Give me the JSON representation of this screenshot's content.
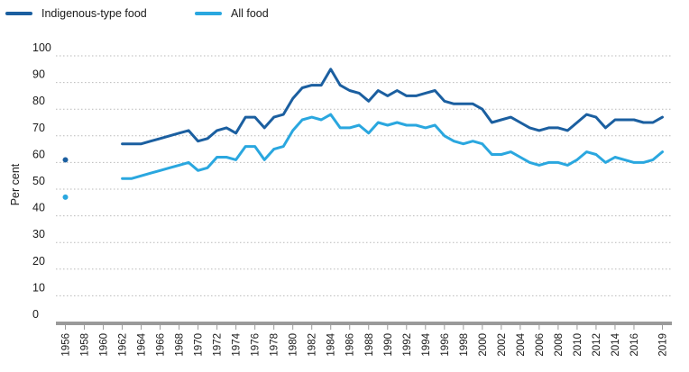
{
  "chart_data": {
    "type": "line",
    "title": "",
    "xlabel": "",
    "ylabel": "Per cent",
    "ylim": [
      0,
      100
    ],
    "xlim": [
      1955,
      2020
    ],
    "yticks": [
      "0",
      "10",
      "20",
      "30",
      "40",
      "50",
      "60",
      "70",
      "80",
      "90",
      "100"
    ],
    "xticks": [
      "1956",
      "1958",
      "1960",
      "1962",
      "1964",
      "1966",
      "1968",
      "1970",
      "1972",
      "1974",
      "1976",
      "1978",
      "1980",
      "1982",
      "1984",
      "1986",
      "1988",
      "1990",
      "1992",
      "1994",
      "1996",
      "1998",
      "2000",
      "2002",
      "2004",
      "2006",
      "2008",
      "2010",
      "2012",
      "2014",
      "2016",
      "2019"
    ],
    "grid": true,
    "legend_position": "top-left",
    "series": [
      {
        "name": "Indigenous-type food",
        "color": "#1b5fa0",
        "isolated_point": {
          "x": 1956,
          "y": 61
        },
        "x": [
          1962,
          1963,
          1964,
          1965,
          1966,
          1967,
          1968,
          1969,
          1970,
          1971,
          1972,
          1973,
          1974,
          1975,
          1976,
          1977,
          1978,
          1979,
          1980,
          1981,
          1982,
          1983,
          1984,
          1985,
          1986,
          1987,
          1988,
          1989,
          1990,
          1991,
          1992,
          1993,
          1994,
          1995,
          1996,
          1997,
          1998,
          1999,
          2000,
          2001,
          2002,
          2003,
          2004,
          2005,
          2006,
          2007,
          2008,
          2009,
          2010,
          2011,
          2012,
          2013,
          2014,
          2015,
          2016,
          2017,
          2018,
          2019
        ],
        "values": [
          67,
          67,
          67,
          68,
          69,
          70,
          71,
          72,
          68,
          69,
          72,
          73,
          71,
          77,
          77,
          73,
          77,
          78,
          84,
          88,
          89,
          89,
          95,
          89,
          87,
          86,
          83,
          87,
          85,
          87,
          85,
          85,
          86,
          87,
          83,
          82,
          82,
          82,
          80,
          75,
          76,
          77,
          75,
          73,
          72,
          73,
          73,
          72,
          75,
          78,
          77,
          73,
          76,
          76,
          76,
          75,
          75,
          77
        ]
      },
      {
        "name": "All food",
        "color": "#2aa7df",
        "isolated_point": {
          "x": 1956,
          "y": 47
        },
        "x": [
          1962,
          1963,
          1964,
          1965,
          1966,
          1967,
          1968,
          1969,
          1970,
          1971,
          1972,
          1973,
          1974,
          1975,
          1976,
          1977,
          1978,
          1979,
          1980,
          1981,
          1982,
          1983,
          1984,
          1985,
          1986,
          1987,
          1988,
          1989,
          1990,
          1991,
          1992,
          1993,
          1994,
          1995,
          1996,
          1997,
          1998,
          1999,
          2000,
          2001,
          2002,
          2003,
          2004,
          2005,
          2006,
          2007,
          2008,
          2009,
          2010,
          2011,
          2012,
          2013,
          2014,
          2015,
          2016,
          2017,
          2018,
          2019
        ],
        "values": [
          54,
          54,
          55,
          56,
          57,
          58,
          59,
          60,
          57,
          58,
          62,
          62,
          61,
          66,
          66,
          61,
          65,
          66,
          72,
          76,
          77,
          76,
          78,
          73,
          73,
          74,
          71,
          75,
          74,
          75,
          74,
          74,
          73,
          74,
          70,
          68,
          67,
          68,
          67,
          63,
          63,
          64,
          62,
          60,
          59,
          60,
          60,
          59,
          61,
          64,
          63,
          60,
          62,
          61,
          60,
          60,
          61,
          64
        ]
      }
    ]
  }
}
